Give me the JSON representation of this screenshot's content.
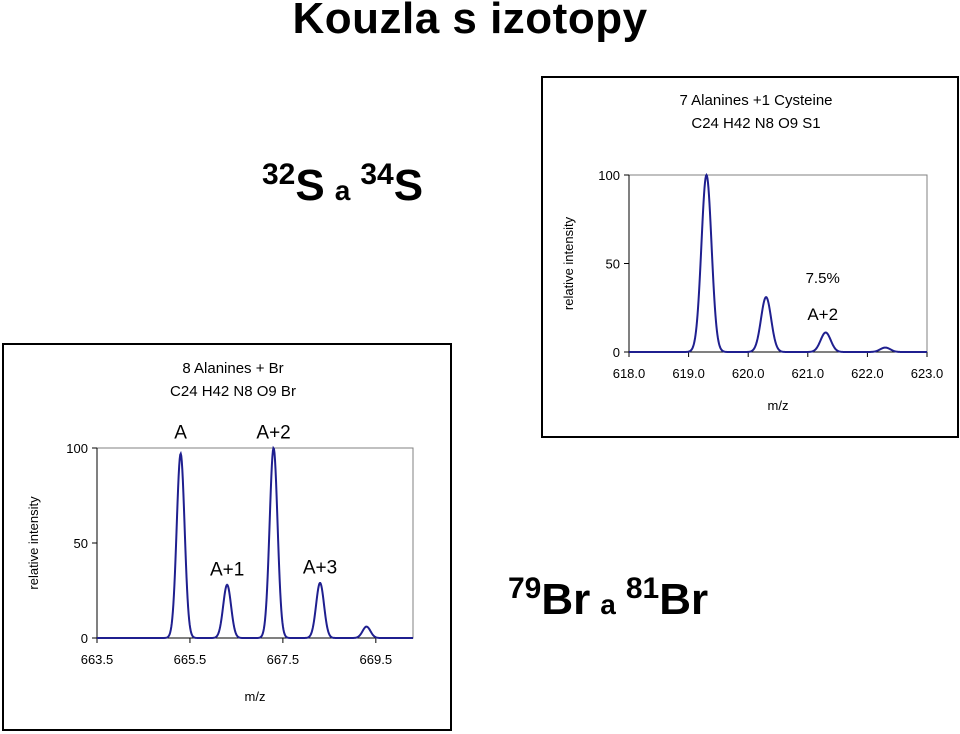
{
  "page_title": "Kouzla s izotopy",
  "isotope_labels": {
    "top": {
      "mass1": "32",
      "sym1": "S",
      "conj": "a",
      "mass2": "34",
      "sym2": "S"
    },
    "bottom": {
      "mass1": "79",
      "sym1": "Br",
      "conj": "a",
      "mass2": "81",
      "sym2": "Br"
    }
  },
  "chart_data": [
    {
      "type": "line",
      "title": "7 Alanines +1 Cysteine",
      "subtitle": "C24 H42 N8 O9 S1",
      "xlabel": "m/z",
      "ylabel": "relative intensity",
      "xlim": [
        618.0,
        623.0
      ],
      "ylim": [
        0,
        100
      ],
      "xticks": [
        618.0,
        619.0,
        620.0,
        621.0,
        622.0,
        623.0
      ],
      "xtick_labels": [
        "618.0",
        "619.0",
        "620.0",
        "621.0",
        "622.0",
        "623.0"
      ],
      "yticks": [
        0,
        50,
        100
      ],
      "ytick_labels": [
        "0",
        "50",
        "100"
      ],
      "grid": false,
      "series": [
        {
          "color": "#1f1f8f",
          "peaks": [
            {
              "x": 619.3,
              "y": 100
            },
            {
              "x": 620.3,
              "y": 31
            },
            {
              "x": 621.3,
              "y": 11
            },
            {
              "x": 622.3,
              "y": 2.5
            }
          ]
        }
      ],
      "annotations": [
        {
          "text": "7.5%",
          "x": 621.25,
          "y": 39
        },
        {
          "text": "A+2",
          "x": 621.25,
          "y": 18
        }
      ]
    },
    {
      "type": "line",
      "title": "8 Alanines + Br",
      "subtitle": "C24 H42 N8 O9 Br",
      "xlabel": "m/z",
      "ylabel": "relative intensity",
      "xlim": [
        663.5,
        670.3
      ],
      "ylim": [
        0,
        100
      ],
      "xticks": [
        663.5,
        665.5,
        667.5,
        669.5
      ],
      "xtick_labels": [
        "663.5",
        "665.5",
        "667.5",
        "669.5"
      ],
      "yticks": [
        0,
        50,
        100
      ],
      "ytick_labels": [
        "0",
        "50",
        "100"
      ],
      "grid": false,
      "series": [
        {
          "color": "#1f1f8f",
          "peaks": [
            {
              "x": 665.3,
              "y": 97
            },
            {
              "x": 666.3,
              "y": 28
            },
            {
              "x": 667.3,
              "y": 100
            },
            {
              "x": 668.3,
              "y": 29
            },
            {
              "x": 669.3,
              "y": 6
            }
          ]
        }
      ],
      "annotations": [
        {
          "text": "A",
          "x": 665.3,
          "y": 103
        },
        {
          "text": "A+1",
          "x": 666.3,
          "y": 33
        },
        {
          "text": "A+2",
          "x": 667.3,
          "y": 103
        },
        {
          "text": "A+3",
          "x": 668.3,
          "y": 34
        }
      ]
    }
  ]
}
